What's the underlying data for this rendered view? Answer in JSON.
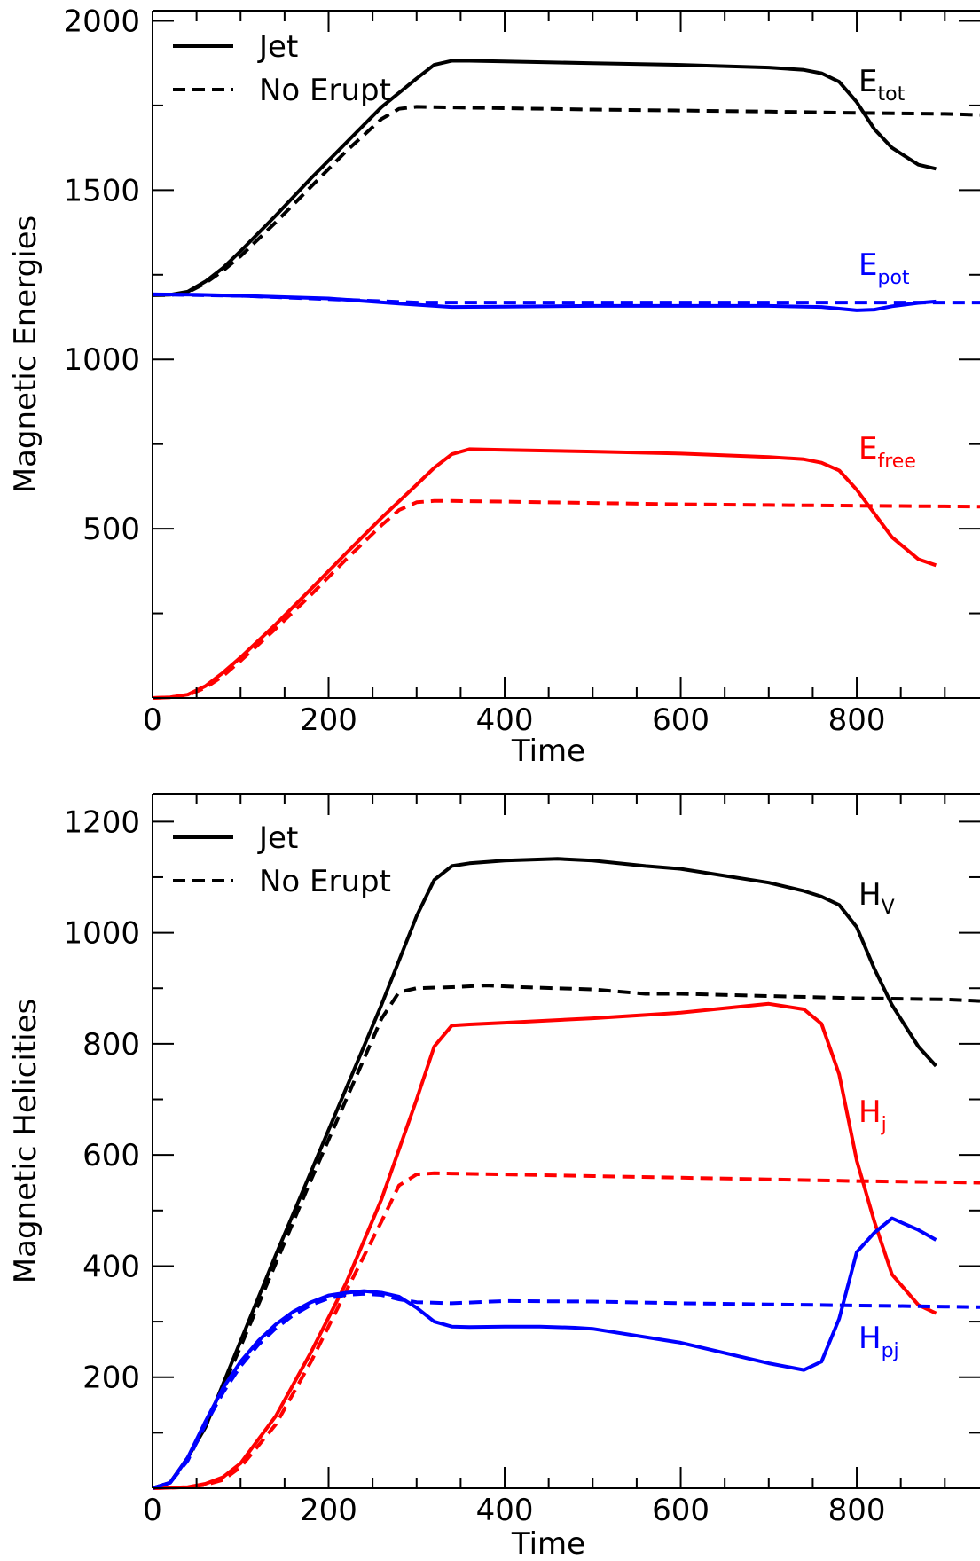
{
  "chart_data": [
    {
      "type": "line",
      "title": "",
      "xlabel": "Time",
      "ylabel": "Magnetic Energies",
      "xlim": [
        0,
        940
      ],
      "ylim": [
        0,
        2030
      ],
      "xticks": [
        0,
        200,
        400,
        600,
        800
      ],
      "yticks": [
        500,
        1000,
        1500,
        2000
      ],
      "grid": false,
      "legend": {
        "position": "top-left",
        "entries": [
          {
            "label": "Jet",
            "style": "solid"
          },
          {
            "label": "No Erupt",
            "style": "dashed"
          }
        ]
      },
      "series": [
        {
          "name": "E_tot",
          "run": "Jet",
          "color": "#000000",
          "style": "solid",
          "x": [
            0,
            20,
            40,
            60,
            80,
            100,
            140,
            180,
            220,
            260,
            300,
            320,
            340,
            360,
            400,
            500,
            600,
            700,
            740,
            760,
            780,
            800,
            820,
            840,
            870,
            890
          ],
          "y": [
            1190,
            1191,
            1200,
            1230,
            1270,
            1320,
            1425,
            1535,
            1640,
            1745,
            1830,
            1870,
            1882,
            1882,
            1880,
            1875,
            1870,
            1862,
            1855,
            1845,
            1820,
            1760,
            1680,
            1625,
            1575,
            1563
          ]
        },
        {
          "name": "E_tot",
          "run": "No Erupt",
          "color": "#000000",
          "style": "dashed",
          "x": [
            0,
            20,
            40,
            60,
            80,
            100,
            140,
            180,
            220,
            260,
            280,
            300,
            320,
            400,
            500,
            600,
            700,
            800,
            900,
            940
          ],
          "y": [
            1190,
            1190,
            1198,
            1225,
            1262,
            1305,
            1405,
            1510,
            1615,
            1710,
            1740,
            1746,
            1745,
            1742,
            1738,
            1735,
            1732,
            1728,
            1725,
            1722
          ]
        },
        {
          "name": "E_pot",
          "run": "Jet",
          "color": "#0000ff",
          "style": "solid",
          "x": [
            0,
            50,
            100,
            200,
            280,
            340,
            400,
            500,
            600,
            700,
            760,
            780,
            800,
            820,
            840,
            870,
            890
          ],
          "y": [
            1192,
            1191,
            1188,
            1180,
            1165,
            1155,
            1156,
            1158,
            1158,
            1158,
            1155,
            1150,
            1145,
            1147,
            1157,
            1167,
            1171
          ]
        },
        {
          "name": "E_pot",
          "run": "No Erupt",
          "color": "#0000ff",
          "style": "dashed",
          "x": [
            0,
            100,
            200,
            300,
            400,
            500,
            600,
            700,
            800,
            900,
            940
          ],
          "y": [
            1192,
            1188,
            1178,
            1168,
            1168,
            1168,
            1168,
            1168,
            1168,
            1168,
            1168
          ]
        },
        {
          "name": "E_free",
          "run": "Jet",
          "color": "#ff0000",
          "style": "solid",
          "x": [
            0,
            20,
            40,
            60,
            80,
            100,
            140,
            180,
            220,
            260,
            300,
            320,
            340,
            360,
            400,
            500,
            600,
            700,
            740,
            760,
            780,
            800,
            820,
            840,
            870,
            890
          ],
          "y": [
            0,
            2,
            10,
            35,
            75,
            120,
            218,
            322,
            428,
            532,
            630,
            680,
            720,
            735,
            733,
            728,
            722,
            712,
            705,
            695,
            672,
            615,
            545,
            475,
            410,
            392
          ]
        },
        {
          "name": "E_free",
          "run": "No Erupt",
          "color": "#ff0000",
          "style": "dashed",
          "x": [
            0,
            20,
            40,
            60,
            80,
            100,
            140,
            180,
            220,
            260,
            280,
            300,
            320,
            340,
            400,
            500,
            600,
            700,
            800,
            900,
            940
          ],
          "y": [
            0,
            2,
            8,
            30,
            65,
            110,
            205,
            305,
            410,
            510,
            555,
            578,
            582,
            582,
            580,
            576,
            572,
            570,
            568,
            566,
            565
          ]
        }
      ],
      "annotations": [
        {
          "base": "E",
          "sub": "tot",
          "color": "#000000"
        },
        {
          "base": "E",
          "sub": "pot",
          "color": "#0000ff"
        },
        {
          "base": "E",
          "sub": "free",
          "color": "#ff0000"
        }
      ]
    },
    {
      "type": "line",
      "title": "",
      "xlabel": "Time",
      "ylabel": "Magnetic Helicities",
      "xlim": [
        0,
        940
      ],
      "ylim": [
        0,
        1250
      ],
      "xticks": [
        0,
        200,
        400,
        600,
        800
      ],
      "yticks": [
        200,
        400,
        600,
        800,
        1000,
        1200
      ],
      "grid": false,
      "legend": {
        "position": "top-left",
        "entries": [
          {
            "label": "Jet",
            "style": "solid"
          },
          {
            "label": "No Erupt",
            "style": "dashed"
          }
        ]
      },
      "series": [
        {
          "name": "H_V",
          "run": "Jet",
          "color": "#000000",
          "style": "solid",
          "x": [
            0,
            20,
            40,
            60,
            100,
            140,
            180,
            220,
            260,
            300,
            320,
            340,
            360,
            400,
            460,
            500,
            560,
            600,
            700,
            740,
            760,
            780,
            800,
            820,
            840,
            870,
            890
          ],
          "y": [
            0,
            10,
            55,
            110,
            265,
            420,
            570,
            720,
            870,
            1030,
            1095,
            1120,
            1125,
            1130,
            1133,
            1130,
            1120,
            1115,
            1090,
            1075,
            1065,
            1050,
            1010,
            935,
            870,
            795,
            760
          ]
        },
        {
          "name": "H_V",
          "run": "No Erupt",
          "color": "#000000",
          "style": "dashed",
          "x": [
            0,
            20,
            40,
            60,
            100,
            140,
            180,
            220,
            260,
            280,
            300,
            340,
            380,
            420,
            500,
            560,
            600,
            700,
            800,
            900,
            940
          ],
          "y": [
            0,
            10,
            55,
            110,
            255,
            405,
            555,
            700,
            845,
            893,
            900,
            902,
            905,
            902,
            898,
            890,
            890,
            886,
            882,
            880,
            877
          ]
        },
        {
          "name": "H_j",
          "run": "Jet",
          "color": "#ff0000",
          "style": "solid",
          "x": [
            0,
            40,
            60,
            80,
            100,
            140,
            180,
            220,
            260,
            300,
            320,
            340,
            360,
            400,
            500,
            600,
            700,
            740,
            760,
            780,
            800,
            820,
            840,
            870,
            890
          ],
          "y": [
            0,
            2,
            8,
            20,
            45,
            130,
            245,
            370,
            520,
            700,
            795,
            833,
            835,
            838,
            846,
            856,
            872,
            862,
            836,
            745,
            590,
            480,
            385,
            330,
            315
          ]
        },
        {
          "name": "H_j",
          "run": "No Erupt",
          "color": "#ff0000",
          "style": "dashed",
          "x": [
            0,
            40,
            60,
            80,
            100,
            140,
            180,
            220,
            260,
            280,
            300,
            320,
            400,
            500,
            600,
            700,
            800,
            900,
            940
          ],
          "y": [
            0,
            2,
            6,
            15,
            38,
            115,
            228,
            355,
            480,
            545,
            565,
            567,
            565,
            562,
            559,
            556,
            553,
            551,
            550
          ]
        },
        {
          "name": "H_pj",
          "run": "Jet",
          "color": "#0000ff",
          "style": "solid",
          "x": [
            0,
            20,
            40,
            60,
            80,
            100,
            120,
            140,
            160,
            180,
            200,
            220,
            240,
            260,
            280,
            300,
            320,
            340,
            360,
            400,
            440,
            480,
            500,
            600,
            700,
            740,
            760,
            780,
            800,
            820,
            840,
            870,
            890
          ],
          "y": [
            0,
            10,
            55,
            120,
            180,
            228,
            265,
            295,
            318,
            335,
            347,
            352,
            355,
            352,
            345,
            325,
            300,
            291,
            290,
            291,
            291,
            289,
            287,
            262,
            225,
            213,
            228,
            305,
            425,
            460,
            486,
            465,
            447
          ]
        },
        {
          "name": "H_pj",
          "run": "No Erupt",
          "color": "#0000ff",
          "style": "dashed",
          "x": [
            0,
            20,
            40,
            60,
            80,
            100,
            120,
            140,
            160,
            180,
            200,
            220,
            240,
            260,
            280,
            300,
            340,
            400,
            500,
            600,
            700,
            800,
            900,
            940
          ],
          "y": [
            0,
            10,
            50,
            115,
            172,
            220,
            258,
            288,
            312,
            330,
            342,
            348,
            350,
            348,
            340,
            335,
            333,
            337,
            336,
            333,
            331,
            329,
            327,
            326
          ]
        }
      ],
      "annotations": [
        {
          "base": "H",
          "sub": "V",
          "color": "#000000"
        },
        {
          "base": "H",
          "sub": "j",
          "color": "#ff0000"
        },
        {
          "base": "H",
          "sub": "pj",
          "color": "#0000ff"
        }
      ]
    }
  ]
}
